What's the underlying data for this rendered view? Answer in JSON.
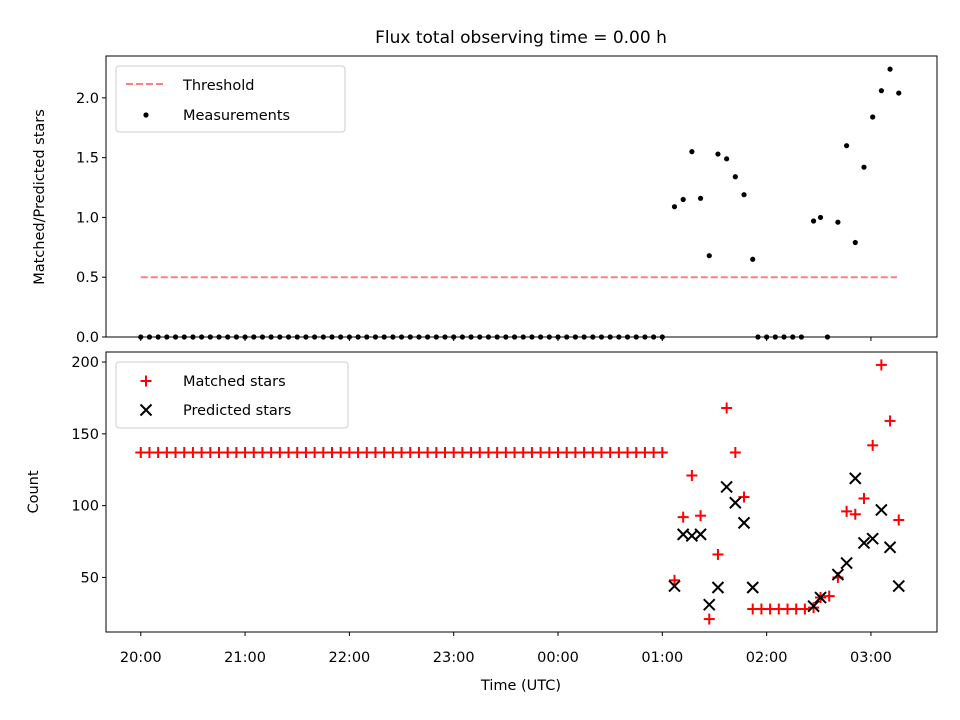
{
  "figure_title": "Flux total observing time = 0.00 h",
  "chart_data": [
    {
      "type": "scatter",
      "title": "Flux total observing time = 0.00 h",
      "xlabel": "",
      "ylabel": "Matched/Predicted stars",
      "xlim": [
        "19:40",
        "03:38"
      ],
      "ylim": [
        0,
        2.35
      ],
      "yticks": [
        0.0,
        0.5,
        1.0,
        1.5,
        2.0
      ],
      "ytick_labels": [
        "0.0",
        "0.5",
        "1.0",
        "1.5",
        "2.0"
      ],
      "grid": false,
      "legend_position": "upper left",
      "threshold": {
        "name": "Threshold",
        "y": 0.5,
        "x_range": [
          "20:00",
          "03:15"
        ],
        "color": "#ff7f7f",
        "style": "dashed"
      },
      "series": [
        {
          "name": "Measurements",
          "color": "#000000",
          "marker": "dot",
          "zero_segments": [
            {
              "start": "20:00",
              "end": "01:00",
              "step_min": 5
            },
            {
              "start": "01:55",
              "end": "02:20",
              "step_min": 5
            }
          ],
          "points": [
            {
              "x": "02:35",
              "y": 0.0
            },
            {
              "x": "01:07",
              "y": 1.09
            },
            {
              "x": "01:12",
              "y": 1.15
            },
            {
              "x": "01:17",
              "y": 1.55
            },
            {
              "x": "01:22",
              "y": 1.16
            },
            {
              "x": "01:27",
              "y": 0.68
            },
            {
              "x": "01:32",
              "y": 1.53
            },
            {
              "x": "01:37",
              "y": 1.49
            },
            {
              "x": "01:42",
              "y": 1.34
            },
            {
              "x": "01:47",
              "y": 1.19
            },
            {
              "x": "01:52",
              "y": 0.65
            },
            {
              "x": "02:27",
              "y": 0.97
            },
            {
              "x": "02:31",
              "y": 1.0
            },
            {
              "x": "02:41",
              "y": 0.96
            },
            {
              "x": "02:46",
              "y": 1.6
            },
            {
              "x": "02:51",
              "y": 0.79
            },
            {
              "x": "02:56",
              "y": 1.42
            },
            {
              "x": "03:01",
              "y": 1.84
            },
            {
              "x": "03:06",
              "y": 2.06
            },
            {
              "x": "03:11",
              "y": 2.24
            },
            {
              "x": "03:16",
              "y": 2.04
            }
          ]
        }
      ]
    },
    {
      "type": "scatter",
      "title": "",
      "xlabel": "Time (UTC)",
      "ylabel": "Count",
      "xlim": [
        "19:40",
        "03:38"
      ],
      "ylim": [
        12,
        207
      ],
      "yticks": [
        50,
        100,
        150,
        200
      ],
      "ytick_labels": [
        "50",
        "100",
        "150",
        "200"
      ],
      "xticks": [
        "20:00",
        "21:00",
        "22:00",
        "23:00",
        "00:00",
        "01:00",
        "02:00",
        "03:00"
      ],
      "grid": false,
      "legend_position": "upper left",
      "series": [
        {
          "name": "Matched stars",
          "color": "#ff0000",
          "marker": "plus",
          "constant_segments": [
            {
              "start": "20:00",
              "end": "01:00",
              "step_min": 5,
              "y": 137
            },
            {
              "start": "01:52",
              "end": "02:22",
              "step_min": 5,
              "y": 28
            }
          ],
          "points": [
            {
              "x": "01:07",
              "y": 48
            },
            {
              "x": "01:12",
              "y": 92
            },
            {
              "x": "01:17",
              "y": 121
            },
            {
              "x": "01:22",
              "y": 93
            },
            {
              "x": "01:27",
              "y": 21
            },
            {
              "x": "01:32",
              "y": 66
            },
            {
              "x": "01:37",
              "y": 168
            },
            {
              "x": "01:42",
              "y": 137
            },
            {
              "x": "01:47",
              "y": 106
            },
            {
              "x": "02:27",
              "y": 29
            },
            {
              "x": "02:31",
              "y": 36
            },
            {
              "x": "02:36",
              "y": 37
            },
            {
              "x": "02:41",
              "y": 50
            },
            {
              "x": "02:46",
              "y": 96
            },
            {
              "x": "02:51",
              "y": 94
            },
            {
              "x": "02:56",
              "y": 105
            },
            {
              "x": "03:01",
              "y": 142
            },
            {
              "x": "03:06",
              "y": 198
            },
            {
              "x": "03:11",
              "y": 159
            },
            {
              "x": "03:16",
              "y": 90
            }
          ]
        },
        {
          "name": "Predicted stars",
          "color": "#000000",
          "marker": "x",
          "points": [
            {
              "x": "01:07",
              "y": 44
            },
            {
              "x": "01:12",
              "y": 80
            },
            {
              "x": "01:17",
              "y": 79
            },
            {
              "x": "01:22",
              "y": 80
            },
            {
              "x": "01:27",
              "y": 31
            },
            {
              "x": "01:32",
              "y": 43
            },
            {
              "x": "01:37",
              "y": 113
            },
            {
              "x": "01:42",
              "y": 102
            },
            {
              "x": "01:47",
              "y": 88
            },
            {
              "x": "01:52",
              "y": 43
            },
            {
              "x": "02:27",
              "y": 30
            },
            {
              "x": "02:31",
              "y": 36
            },
            {
              "x": "02:41",
              "y": 52
            },
            {
              "x": "02:46",
              "y": 60
            },
            {
              "x": "02:51",
              "y": 119
            },
            {
              "x": "02:56",
              "y": 74
            },
            {
              "x": "03:01",
              "y": 77
            },
            {
              "x": "03:06",
              "y": 97
            },
            {
              "x": "03:11",
              "y": 71
            },
            {
              "x": "03:16",
              "y": 44
            }
          ]
        }
      ]
    }
  ]
}
